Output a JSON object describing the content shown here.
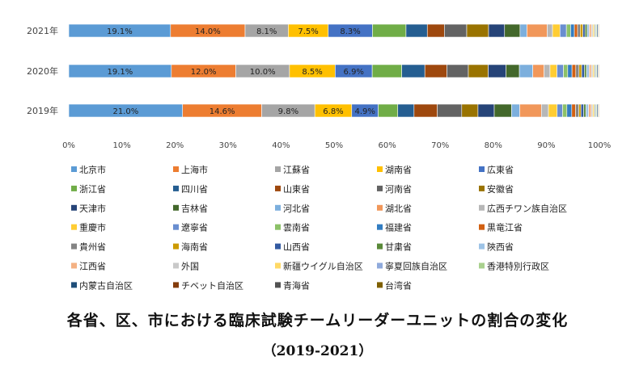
{
  "chart_data": {
    "type": "bar",
    "orientation": "horizontal",
    "stacked": "percent",
    "categories": [
      "2021年",
      "2020年",
      "2019年"
    ],
    "xlim": [
      0,
      100
    ],
    "x_ticks": [
      "0%",
      "10%",
      "20%",
      "30%",
      "40%",
      "50%",
      "60%",
      "70%",
      "80%",
      "90%",
      "100%"
    ],
    "series": [
      {
        "name": "北京市",
        "color": "#5B9BD5",
        "values": [
          19.1,
          19.1,
          21.0
        ],
        "labels": [
          "19.1%",
          "19.1%",
          "21.0%"
        ]
      },
      {
        "name": "上海市",
        "color": "#ED7D31",
        "values": [
          14.0,
          12.0,
          14.6
        ],
        "labels": [
          "14.0%",
          "12.0%",
          "14.6%"
        ]
      },
      {
        "name": "江蘇省",
        "color": "#A5A5A5",
        "values": [
          8.1,
          10.0,
          9.8
        ],
        "labels": [
          "8.1%",
          "10.0%",
          "9.8%"
        ]
      },
      {
        "name": "湖南省",
        "color": "#FFC000",
        "values": [
          7.5,
          8.5,
          6.8
        ],
        "labels": [
          "7.5%",
          "8.5%",
          "6.8%"
        ]
      },
      {
        "name": "広東省",
        "color": "#4472C4",
        "values": [
          8.3,
          6.9,
          4.9
        ],
        "labels": [
          "8.3%",
          "6.9%",
          "4.9%"
        ]
      },
      {
        "name": "浙江省",
        "color": "#70AD47",
        "values": [
          6.3,
          5.5,
          3.6
        ],
        "labels": [
          "",
          "",
          ""
        ]
      },
      {
        "name": "四川省",
        "color": "#255E91",
        "values": [
          4.0,
          4.3,
          3.0
        ],
        "labels": [
          "",
          "",
          ""
        ]
      },
      {
        "name": "山東省",
        "color": "#9E480E",
        "values": [
          3.2,
          4.1,
          4.3
        ],
        "labels": [
          "",
          "",
          ""
        ]
      },
      {
        "name": "河南省",
        "color": "#636363",
        "values": [
          4.2,
          4.0,
          4.5
        ],
        "labels": [
          "",
          "",
          ""
        ]
      },
      {
        "name": "安徽省",
        "color": "#997300",
        "values": [
          4.1,
          3.7,
          3.0
        ],
        "labels": [
          "",
          "",
          ""
        ]
      },
      {
        "name": "天津市",
        "color": "#264478",
        "values": [
          3.0,
          3.3,
          3.0
        ],
        "labels": [
          "",
          "",
          ""
        ]
      },
      {
        "name": "吉林省",
        "color": "#43682B",
        "values": [
          2.9,
          2.5,
          3.2
        ],
        "labels": [
          "",
          "",
          ""
        ]
      },
      {
        "name": "河北省",
        "color": "#7CAFDD",
        "values": [
          1.3,
          2.5,
          1.5
        ],
        "labels": [
          "",
          "",
          ""
        ]
      },
      {
        "name": "湖北省",
        "color": "#F1975A",
        "values": [
          3.8,
          2.1,
          4.0
        ],
        "labels": [
          "",
          "",
          ""
        ]
      },
      {
        "name": "広西チワン族自治区",
        "color": "#B7B7B7",
        "values": [
          1.0,
          1.1,
          1.3
        ],
        "labels": [
          "",
          "",
          ""
        ]
      },
      {
        "name": "重慶市",
        "color": "#FFCD33",
        "values": [
          1.4,
          1.3,
          1.6
        ],
        "labels": [
          "",
          "",
          ""
        ]
      },
      {
        "name": "遼寧省",
        "color": "#698ED0",
        "values": [
          1.2,
          1.2,
          1.0
        ],
        "labels": [
          "",
          "",
          ""
        ]
      },
      {
        "name": "雲南省",
        "color": "#8CC168",
        "values": [
          0.8,
          0.8,
          0.8
        ],
        "labels": [
          "",
          "",
          ""
        ]
      },
      {
        "name": "福建省",
        "color": "#327DC2",
        "values": [
          0.7,
          0.8,
          0.9
        ],
        "labels": [
          "",
          "",
          ""
        ]
      },
      {
        "name": "黒竜江省",
        "color": "#D26012",
        "values": [
          0.6,
          0.7,
          0.7
        ],
        "labels": [
          "",
          "",
          ""
        ]
      },
      {
        "name": "貴州省",
        "color": "#848484",
        "values": [
          0.5,
          0.6,
          0.6
        ],
        "labels": [
          "",
          "",
          ""
        ]
      },
      {
        "name": "海南省",
        "color": "#CC9A00",
        "values": [
          0.5,
          0.5,
          0.4
        ],
        "labels": [
          "",
          "",
          ""
        ]
      },
      {
        "name": "山西省",
        "color": "#335AA1",
        "values": [
          0.4,
          0.5,
          0.5
        ],
        "labels": [
          "",
          "",
          ""
        ]
      },
      {
        "name": "甘粛省",
        "color": "#5A8A39",
        "values": [
          0.4,
          0.4,
          0.4
        ],
        "labels": [
          "",
          "",
          ""
        ]
      },
      {
        "name": "陝西省",
        "color": "#9DC3E6",
        "values": [
          0.4,
          0.5,
          0.5
        ],
        "labels": [
          "",
          "",
          ""
        ]
      },
      {
        "name": "江西省",
        "color": "#F4B183",
        "values": [
          0.4,
          0.4,
          0.5
        ],
        "labels": [
          "",
          "",
          ""
        ]
      },
      {
        "name": "外国",
        "color": "#C9C9C9",
        "values": [
          0.3,
          0.3,
          0.3
        ],
        "labels": [
          "",
          "",
          ""
        ]
      },
      {
        "name": "新疆ウイグル自治区",
        "color": "#FFD966",
        "values": [
          0.3,
          0.3,
          0.3
        ],
        "labels": [
          "",
          "",
          ""
        ]
      },
      {
        "name": "寧夏回族自治区",
        "color": "#8FAADC",
        "values": [
          0.2,
          0.2,
          0.2
        ],
        "labels": [
          "",
          "",
          ""
        ]
      },
      {
        "name": "香港特別行政区",
        "color": "#A9D18E",
        "values": [
          0.2,
          0.2,
          0.2
        ],
        "labels": [
          "",
          "",
          ""
        ]
      },
      {
        "name": "内蒙古自治区",
        "color": "#1F4E79",
        "values": [
          0.2,
          0.2,
          0.2
        ],
        "labels": [
          "",
          "",
          ""
        ]
      },
      {
        "name": "チベット自治区",
        "color": "#843C0C",
        "values": [
          0.1,
          0.1,
          0.1
        ],
        "labels": [
          "",
          "",
          ""
        ]
      },
      {
        "name": "青海省",
        "color": "#525252",
        "values": [
          0.1,
          0.1,
          0.1
        ],
        "labels": [
          "",
          "",
          ""
        ]
      },
      {
        "name": "台湾省",
        "color": "#7F6000",
        "values": [
          0.1,
          0.1,
          0.1
        ],
        "labels": [
          "",
          "",
          ""
        ]
      }
    ],
    "legend_position": "bottom",
    "grid": false
  },
  "caption": {
    "line1": "各省、区、市における臨床試験チームリーダーユニットの割合の変化",
    "line2": "（2019-2021）"
  }
}
